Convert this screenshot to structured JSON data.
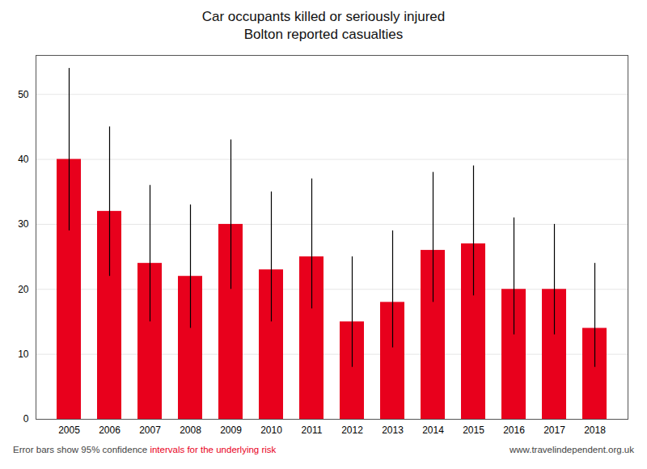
{
  "chart_data": {
    "type": "bar",
    "title": "Car occupants killed or seriously injured",
    "subtitle": "Bolton reported casualties",
    "categories": [
      "2005",
      "2006",
      "2007",
      "2008",
      "2009",
      "2010",
      "2011",
      "2012",
      "2013",
      "2014",
      "2015",
      "2016",
      "2017",
      "2018"
    ],
    "values": [
      40,
      32,
      24,
      22,
      30,
      23,
      25,
      15,
      18,
      26,
      27,
      20,
      20,
      14
    ],
    "err_upper": [
      14,
      13,
      12,
      11,
      13,
      12,
      12,
      10,
      11,
      12,
      12,
      11,
      10,
      10
    ],
    "err_lower": [
      11,
      10,
      9,
      8,
      10,
      8,
      8,
      7,
      7,
      8,
      8,
      7,
      7,
      6
    ],
    "color": "#E8001C",
    "error_color": "#000000",
    "ylim": [
      0,
      56
    ],
    "yticks": [
      0,
      10,
      20,
      30,
      40,
      50
    ],
    "grid": true,
    "annotations": [
      {
        "text": "Error bars show 95% confidence ",
        "color": "#444444"
      },
      {
        "text": "intervals for the underlying risk",
        "color": "#E8001C"
      },
      {
        "text": "www.travelindependent.org.uk",
        "color": "#444444"
      }
    ]
  }
}
